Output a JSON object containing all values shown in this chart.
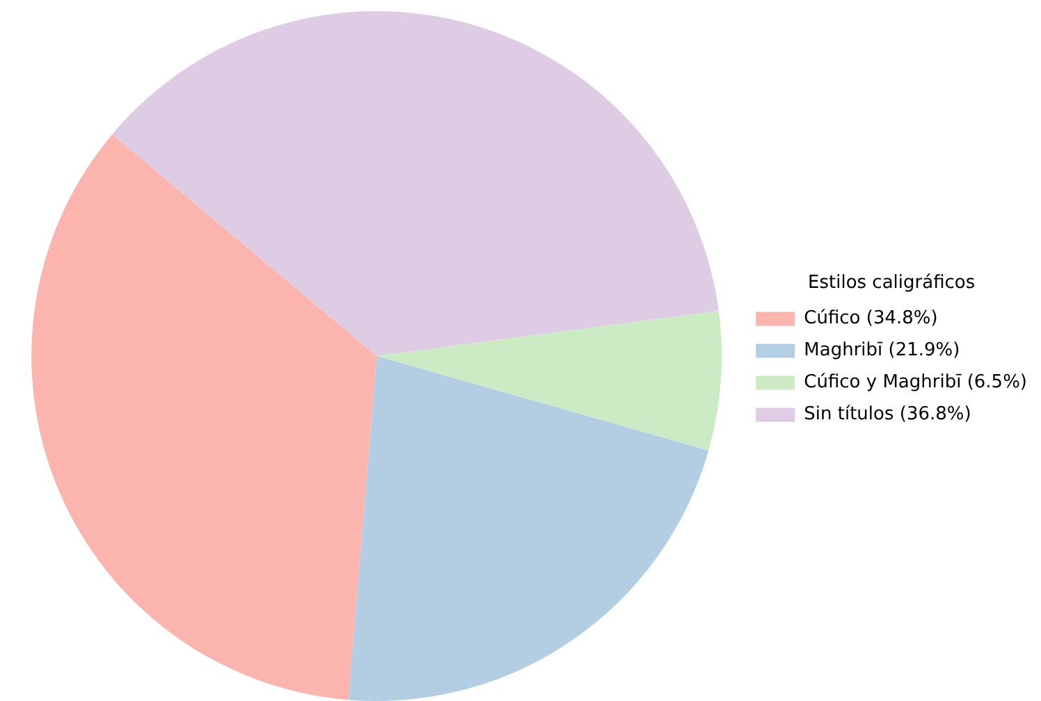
{
  "chart_data": {
    "type": "pie",
    "legend_title": "Estilos caligráficos",
    "legend": "right",
    "categories": [
      "Cúfico (34.8%)",
      "Maghribī (21.9%)",
      "Cúfico y Maghribī (6.5%)",
      "Sin títulos (36.8%)"
    ],
    "values": [
      34.8,
      21.9,
      6.5,
      36.8
    ],
    "colors": [
      "#fbb4ae",
      "#b3cde3",
      "#ccebc5",
      "#decbe4"
    ]
  }
}
